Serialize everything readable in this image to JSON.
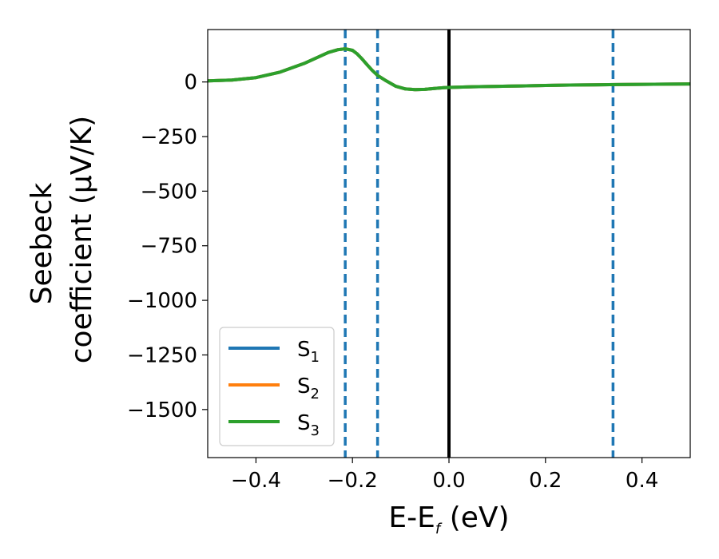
{
  "chart_data": {
    "type": "line",
    "xlabel": "E-E",
    "xlabel_subscript": "f",
    "xlabel_unit": "(eV)",
    "ylabel_line1": "Seebeck",
    "ylabel_line2": "coefficient",
    "ylabel_unit": "(μV/K)",
    "xlim": [
      -0.5,
      0.5
    ],
    "ylim": [
      -1720,
      240
    ],
    "xticks": [
      -0.4,
      -0.2,
      0.0,
      0.2,
      0.4
    ],
    "xtick_labels": [
      "−0.4",
      "−0.2",
      "0.0",
      "0.2",
      "0.4"
    ],
    "yticks": [
      0,
      -250,
      -500,
      -750,
      -1000,
      -1250,
      -1500
    ],
    "ytick_labels": [
      "0",
      "−250",
      "−500",
      "−750",
      "−1000",
      "−1250",
      "−1500"
    ],
    "grid": false,
    "legend_placement": "lower-left",
    "vlines": [
      {
        "x": -0.215,
        "style": "dashed",
        "color": "#1f77b4"
      },
      {
        "x": -0.148,
        "style": "dashed",
        "color": "#1f77b4"
      },
      {
        "x": 0.0,
        "style": "solid",
        "color": "#000000"
      },
      {
        "x": 0.34,
        "style": "dashed",
        "color": "#1f77b4"
      }
    ],
    "x": [
      -0.5,
      -0.45,
      -0.4,
      -0.35,
      -0.3,
      -0.27,
      -0.25,
      -0.23,
      -0.215,
      -0.2,
      -0.19,
      -0.18,
      -0.17,
      -0.16,
      -0.148,
      -0.13,
      -0.11,
      -0.09,
      -0.07,
      -0.05,
      -0.03,
      -0.01,
      0.0,
      0.05,
      0.1,
      0.15,
      0.2,
      0.25,
      0.3,
      0.35,
      0.4,
      0.45,
      0.5
    ],
    "series": [
      {
        "name": "S",
        "subscript": "1",
        "color": "#1f77b4",
        "values": [
          5,
          9,
          20,
          45,
          85,
          115,
          135,
          148,
          152,
          145,
          128,
          105,
          80,
          55,
          30,
          5,
          -20,
          -32,
          -35,
          -34,
          -30,
          -26,
          -25,
          -22,
          -20,
          -18,
          -16,
          -14,
          -13,
          -12,
          -11,
          -10,
          -9
        ]
      },
      {
        "name": "S",
        "subscript": "2",
        "color": "#ff7f0e",
        "values": [
          5,
          9,
          20,
          45,
          85,
          115,
          135,
          148,
          152,
          145,
          128,
          105,
          80,
          55,
          30,
          5,
          -20,
          -32,
          -35,
          -34,
          -30,
          -26,
          -25,
          -22,
          -20,
          -18,
          -16,
          -14,
          -13,
          -12,
          -11,
          -10,
          -9
        ]
      },
      {
        "name": "S",
        "subscript": "3",
        "color": "#2ca02c",
        "values": [
          5,
          9,
          20,
          45,
          85,
          115,
          135,
          148,
          152,
          145,
          128,
          105,
          80,
          55,
          30,
          5,
          -20,
          -32,
          -35,
          -34,
          -30,
          -26,
          -25,
          -22,
          -20,
          -18,
          -16,
          -14,
          -13,
          -12,
          -11,
          -10,
          -9
        ]
      }
    ]
  }
}
